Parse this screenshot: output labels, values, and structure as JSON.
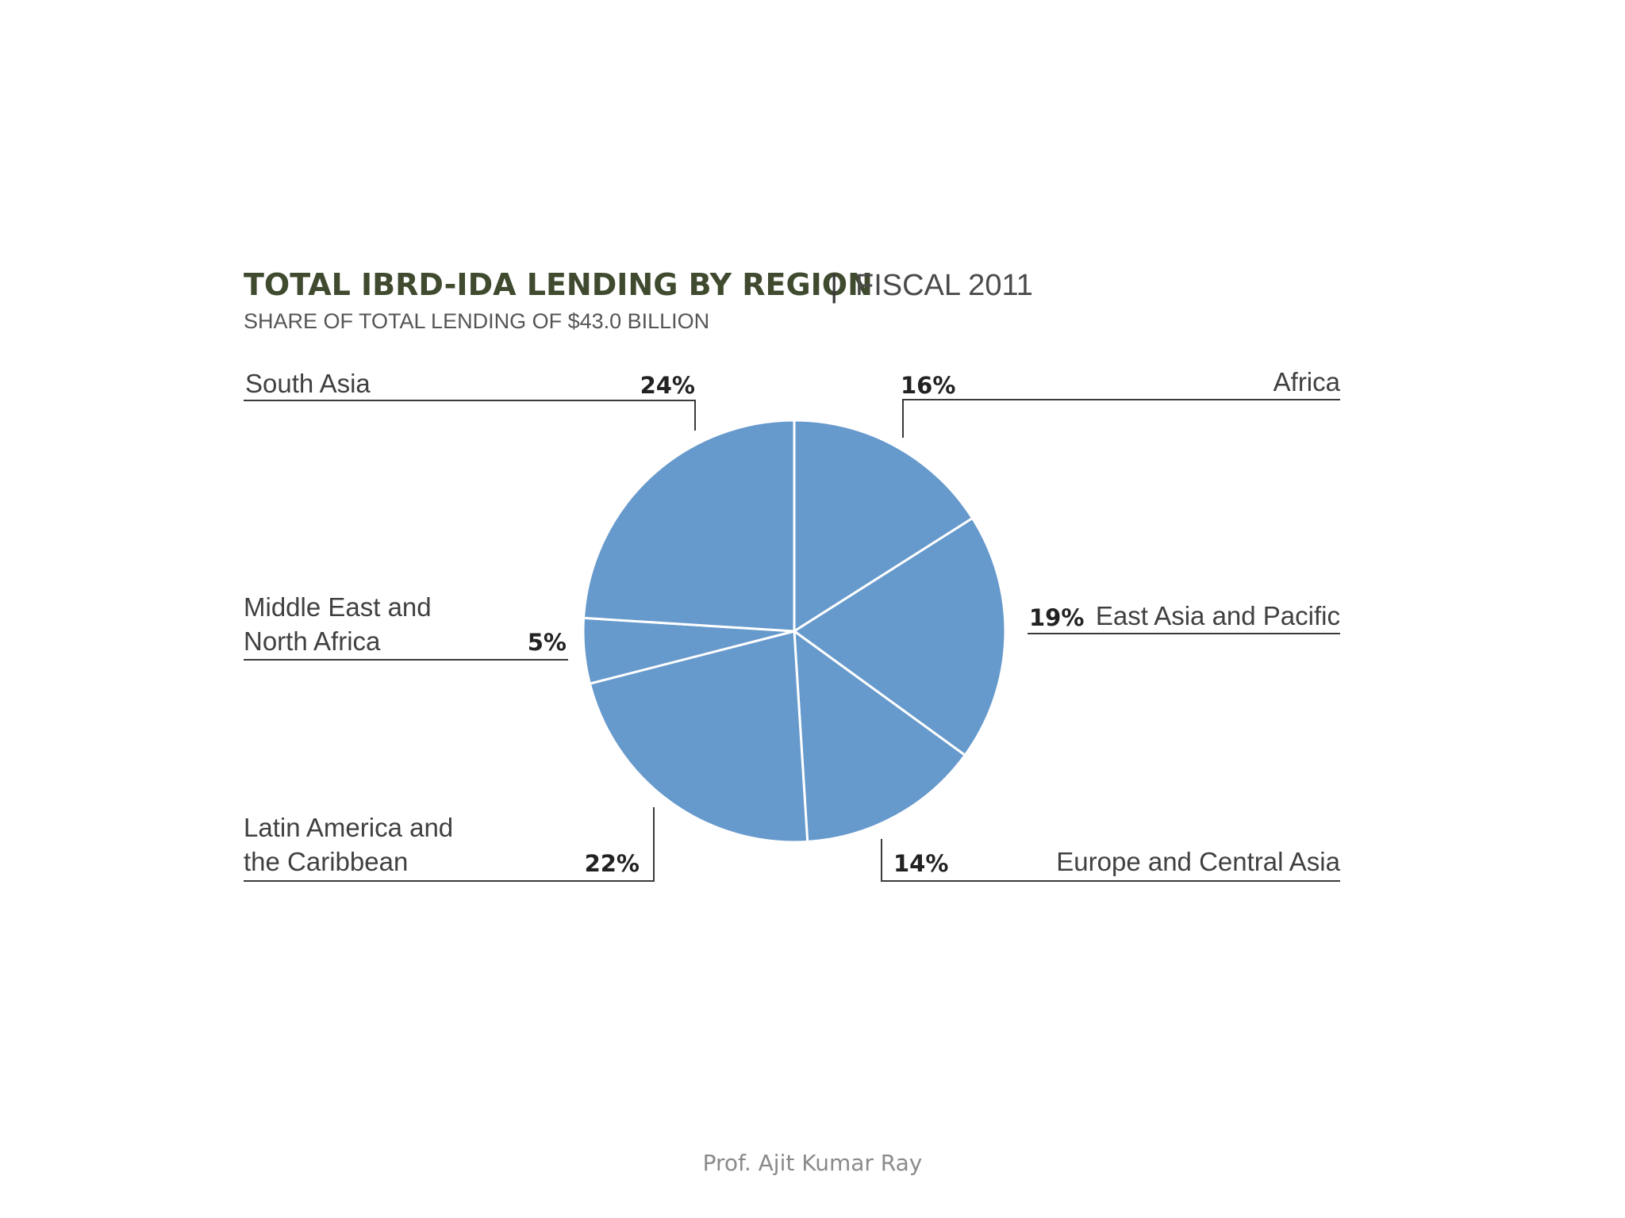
{
  "chart_data": {
    "type": "pie",
    "title": "TOTAL IBRD-IDA LENDING BY REGION",
    "title_separator": "|",
    "title_suffix": "FISCAL 2011",
    "subtitle": "SHARE OF TOTAL LENDING OF $43.0 BILLION",
    "slice_color": "#6699cc",
    "slices": [
      {
        "label_lines": [
          "Africa"
        ],
        "value": 16,
        "value_label": "16%"
      },
      {
        "label_lines": [
          "East Asia and Pacific"
        ],
        "value": 19,
        "value_label": "19%"
      },
      {
        "label_lines": [
          "Europe and Central Asia"
        ],
        "value": 14,
        "value_label": "14%"
      },
      {
        "label_lines": [
          "Latin America and",
          "the Caribbean"
        ],
        "value": 22,
        "value_label": "22%"
      },
      {
        "label_lines": [
          "Middle East and",
          "North Africa"
        ],
        "value": 5,
        "value_label": "5%"
      },
      {
        "label_lines": [
          "South Asia"
        ],
        "value": 24,
        "value_label": "24%"
      }
    ]
  },
  "footer": "Prof. Ajit Kumar Ray"
}
